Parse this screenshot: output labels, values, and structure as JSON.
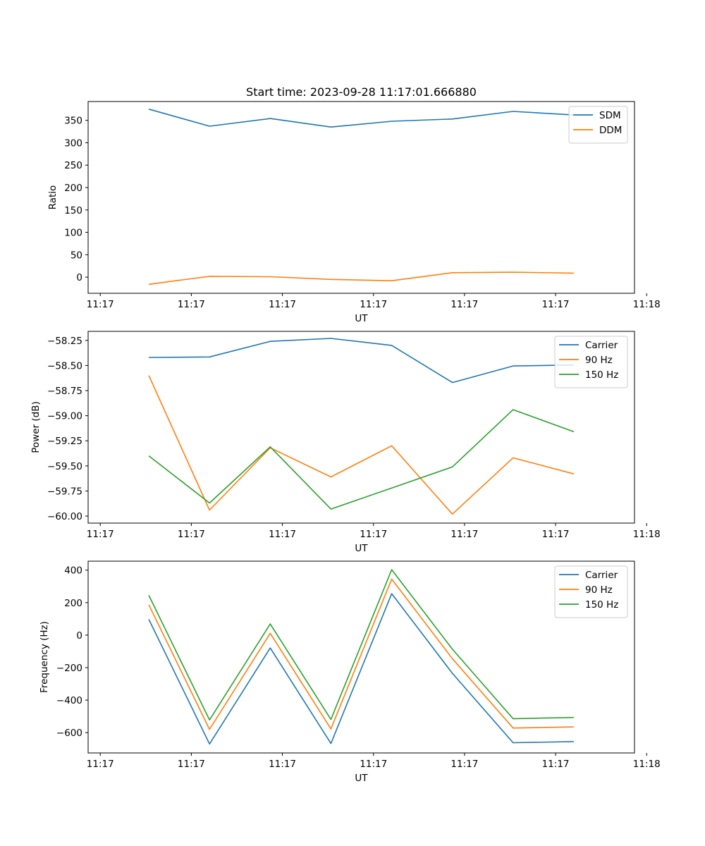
{
  "chart_data": [
    {
      "type": "line",
      "title": "Start time: 2023-09-28 11:17:01.666880",
      "xlabel": "UT",
      "ylabel": "Ratio",
      "x_points": [
        1,
        2,
        3,
        4,
        5,
        6,
        7,
        8
      ],
      "xlim": [
        0,
        9
      ],
      "x_ticks": [
        {
          "value": 0.2,
          "label": "11:17"
        },
        {
          "value": 1.7,
          "label": "11:17"
        },
        {
          "value": 3.2,
          "label": "11:17"
        },
        {
          "value": 4.7,
          "label": "11:17"
        },
        {
          "value": 6.2,
          "label": "11:17"
        },
        {
          "value": 7.7,
          "label": "11:17"
        },
        {
          "value": 9.2,
          "label": "11:18"
        }
      ],
      "ylim": [
        -36,
        392
      ],
      "y_ticks": [
        {
          "value": 0,
          "label": "0"
        },
        {
          "value": 50,
          "label": "50"
        },
        {
          "value": 100,
          "label": "100"
        },
        {
          "value": 150,
          "label": "150"
        },
        {
          "value": 200,
          "label": "200"
        },
        {
          "value": 250,
          "label": "250"
        },
        {
          "value": 300,
          "label": "300"
        },
        {
          "value": 350,
          "label": "350"
        }
      ],
      "legend_position": "top-right",
      "series": [
        {
          "name": "SDM",
          "color": "#1f77b4",
          "values": [
            375,
            337,
            354,
            335,
            348,
            353,
            370,
            362
          ]
        },
        {
          "name": "DDM",
          "color": "#ff7f0e",
          "values": [
            -16,
            2,
            1,
            -5,
            -8,
            10,
            11,
            9
          ]
        }
      ]
    },
    {
      "type": "line",
      "title": "",
      "xlabel": "UT",
      "ylabel": "Power (dB)",
      "x_points": [
        1,
        2,
        3,
        4,
        5,
        6,
        7,
        8
      ],
      "xlim": [
        0,
        9
      ],
      "x_ticks": [
        {
          "value": 0.2,
          "label": "11:17"
        },
        {
          "value": 1.7,
          "label": "11:17"
        },
        {
          "value": 3.2,
          "label": "11:17"
        },
        {
          "value": 4.7,
          "label": "11:17"
        },
        {
          "value": 6.2,
          "label": "11:17"
        },
        {
          "value": 7.7,
          "label": "11:17"
        },
        {
          "value": 9.2,
          "label": "11:18"
        }
      ],
      "ylim": [
        -60.07,
        -58.16
      ],
      "y_ticks": [
        {
          "value": -60.0,
          "label": "−60.00"
        },
        {
          "value": -59.75,
          "label": "−59.75"
        },
        {
          "value": -59.5,
          "label": "−59.50"
        },
        {
          "value": -59.25,
          "label": "−59.25"
        },
        {
          "value": -59.0,
          "label": "−59.00"
        },
        {
          "value": -58.75,
          "label": "−58.75"
        },
        {
          "value": -58.5,
          "label": "−58.50"
        },
        {
          "value": -58.25,
          "label": "−58.25"
        }
      ],
      "legend_position": "top-right",
      "series": [
        {
          "name": "Carrier",
          "color": "#1f77b4",
          "values": [
            -58.42,
            -58.415,
            -58.26,
            -58.23,
            -58.3,
            -58.67,
            -58.505,
            -58.495
          ]
        },
        {
          "name": "90 Hz",
          "color": "#ff7f0e",
          "values": [
            -58.6,
            -59.94,
            -59.32,
            -59.61,
            -59.3,
            -59.98,
            -59.42,
            -59.58
          ]
        },
        {
          "name": "150 Hz",
          "color": "#2ca02c",
          "values": [
            -59.4,
            -59.87,
            -59.31,
            -59.93,
            -59.72,
            -59.51,
            -58.94,
            -59.16
          ]
        }
      ]
    },
    {
      "type": "line",
      "title": "",
      "xlabel": "UT",
      "ylabel": "Frequency (Hz)",
      "x_points": [
        1,
        2,
        3,
        4,
        5,
        6,
        7,
        8
      ],
      "xlim": [
        0,
        9
      ],
      "x_ticks": [
        {
          "value": 0.2,
          "label": "11:17"
        },
        {
          "value": 1.7,
          "label": "11:17"
        },
        {
          "value": 3.2,
          "label": "11:17"
        },
        {
          "value": 4.7,
          "label": "11:17"
        },
        {
          "value": 6.2,
          "label": "11:17"
        },
        {
          "value": 7.7,
          "label": "11:17"
        },
        {
          "value": 9.2,
          "label": "11:18"
        }
      ],
      "ylim": [
        -725,
        455
      ],
      "y_ticks": [
        {
          "value": -600,
          "label": "−600"
        },
        {
          "value": -400,
          "label": "−400"
        },
        {
          "value": -200,
          "label": "−200"
        },
        {
          "value": 0,
          "label": "0"
        },
        {
          "value": 200,
          "label": "200"
        },
        {
          "value": 400,
          "label": "400"
        }
      ],
      "legend_position": "top-right",
      "series": [
        {
          "name": "Carrier",
          "color": "#1f77b4",
          "values": [
            97,
            -670,
            -79,
            -667,
            255,
            -235,
            -662,
            -655
          ]
        },
        {
          "name": "90 Hz",
          "color": "#ff7f0e",
          "values": [
            187,
            -580,
            11,
            -577,
            345,
            -145,
            -572,
            -565
          ]
        },
        {
          "name": "150 Hz",
          "color": "#2ca02c",
          "values": [
            245,
            -522,
            69,
            -519,
            403,
            -87,
            -514,
            -507
          ]
        }
      ]
    }
  ]
}
